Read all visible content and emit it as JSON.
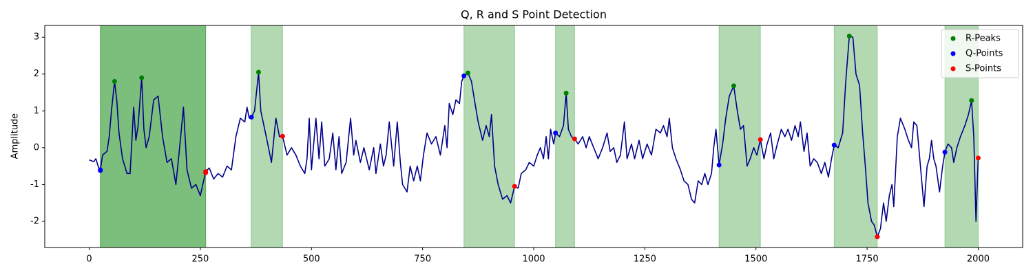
{
  "chart_data": {
    "type": "line",
    "title": "Q, R and S Point Detection",
    "ylabel": "Amplitude",
    "xlim": [
      -100,
      2100
    ],
    "ylim": [
      -2.71,
      3.32
    ],
    "xticks": [
      0,
      250,
      500,
      750,
      1000,
      1250,
      1500,
      1750,
      2000
    ],
    "yticks": [
      -2,
      -1,
      0,
      1,
      2,
      3
    ],
    "color": "#00008b",
    "x": [
      0,
      10,
      15,
      20,
      25,
      30,
      40,
      45,
      50,
      57,
      62,
      67,
      75,
      85,
      92,
      100,
      105,
      110,
      118,
      123,
      128,
      135,
      145,
      155,
      165,
      175,
      185,
      195,
      205,
      212,
      220,
      230,
      240,
      250,
      262,
      270,
      280,
      290,
      300,
      310,
      320,
      330,
      340,
      350,
      355,
      360,
      365,
      372,
      381,
      386,
      393,
      400,
      410,
      420,
      428,
      435,
      445,
      455,
      465,
      475,
      485,
      490,
      495,
      500,
      510,
      517,
      523,
      530,
      540,
      548,
      555,
      562,
      568,
      578,
      588,
      595,
      600,
      610,
      618,
      630,
      640,
      645,
      655,
      662,
      668,
      675,
      685,
      693,
      700,
      705,
      715,
      722,
      730,
      738,
      745,
      752,
      760,
      770,
      780,
      790,
      795,
      800,
      805,
      810,
      818,
      825,
      833,
      838,
      843,
      852,
      860,
      868,
      875,
      885,
      893,
      900,
      905,
      912,
      920,
      930,
      940,
      948,
      957,
      965,
      972,
      982,
      990,
      1000,
      1008,
      1015,
      1022,
      1028,
      1033,
      1038,
      1045,
      1049,
      1058,
      1067,
      1073,
      1078,
      1085,
      1092,
      1100,
      1110,
      1118,
      1125,
      1135,
      1145,
      1155,
      1165,
      1172,
      1180,
      1187,
      1195,
      1204,
      1210,
      1220,
      1227,
      1237,
      1245,
      1255,
      1265,
      1275,
      1285,
      1292,
      1300,
      1305,
      1312,
      1320,
      1330,
      1338,
      1347,
      1355,
      1362,
      1370,
      1378,
      1385,
      1392,
      1400,
      1405,
      1410,
      1417,
      1425,
      1432,
      1440,
      1450,
      1458,
      1465,
      1472,
      1480,
      1487,
      1495,
      1502,
      1510,
      1518,
      1525,
      1533,
      1540,
      1548,
      1557,
      1565,
      1572,
      1580,
      1588,
      1595,
      1600,
      1608,
      1615,
      1622,
      1630,
      1638,
      1647,
      1655,
      1663,
      1670,
      1676,
      1685,
      1695,
      1702,
      1710,
      1718,
      1725,
      1733,
      1740,
      1746,
      1752,
      1760,
      1766,
      1773,
      1780,
      1787,
      1793,
      1800,
      1806,
      1810,
      1818,
      1825,
      1835,
      1843,
      1850,
      1855,
      1862,
      1870,
      1878,
      1885,
      1890,
      1895,
      1900,
      1905,
      1913,
      1920,
      1925,
      1932,
      1940,
      1945,
      1952,
      1960,
      1970,
      1978,
      1985,
      1990,
      1995,
      2000
    ],
    "values": [
      -0.33,
      -0.38,
      -0.3,
      -0.5,
      -0.62,
      -0.2,
      -0.1,
      0.3,
      1.0,
      1.8,
      1.3,
      0.4,
      -0.3,
      -0.7,
      -0.7,
      1.1,
      0.2,
      0.6,
      1.9,
      0.5,
      0.0,
      0.3,
      1.3,
      1.4,
      0.3,
      -0.4,
      -0.3,
      -1.0,
      0.2,
      1.1,
      -0.6,
      -1.1,
      -1.0,
      -1.3,
      -0.65,
      -0.55,
      -0.85,
      -0.7,
      -0.8,
      -0.5,
      -0.6,
      0.3,
      0.8,
      0.7,
      1.1,
      0.8,
      0.83,
      1.0,
      2.05,
      1.0,
      0.6,
      0.2,
      -0.4,
      0.8,
      0.3,
      0.31,
      -0.2,
      0.0,
      -0.2,
      -0.5,
      -0.7,
      -0.3,
      0.8,
      -0.6,
      0.8,
      -0.3,
      0.7,
      -0.5,
      -0.3,
      0.4,
      -0.6,
      0.3,
      -0.7,
      -0.4,
      0.8,
      -0.2,
      0.2,
      -0.4,
      0.0,
      -0.6,
      0.0,
      -0.7,
      0.1,
      -0.5,
      -0.2,
      0.7,
      -0.5,
      0.7,
      -0.4,
      -1.0,
      -1.2,
      -0.5,
      -0.9,
      -0.5,
      -0.9,
      -0.2,
      0.4,
      0.1,
      0.3,
      -0.2,
      0.2,
      0.6,
      0.0,
      1.2,
      0.9,
      1.3,
      1.2,
      1.8,
      1.95,
      2.03,
      1.8,
      1.2,
      0.7,
      0.2,
      0.6,
      0.3,
      0.9,
      -0.5,
      -1.0,
      -1.4,
      -1.3,
      -1.5,
      -1.05,
      -1.1,
      -0.7,
      -0.6,
      -0.4,
      -0.5,
      -0.2,
      0.0,
      -0.3,
      0.3,
      -0.3,
      0.5,
      0.1,
      0.4,
      0.3,
      0.6,
      1.48,
      0.5,
      0.3,
      0.24,
      0.1,
      0.3,
      0.0,
      0.3,
      0.0,
      -0.3,
      0.0,
      0.4,
      -0.1,
      0.0,
      -0.4,
      -0.2,
      0.7,
      -0.3,
      0.1,
      -0.3,
      0.2,
      -0.3,
      0.1,
      -0.2,
      0.5,
      0.4,
      0.6,
      0.3,
      0.8,
      0.0,
      -0.3,
      -0.6,
      -0.9,
      -1.0,
      -1.4,
      -1.5,
      -0.9,
      -1.0,
      -0.7,
      -1.0,
      -0.7,
      0.0,
      0.5,
      -0.47,
      0.1,
      0.8,
      1.4,
      1.68,
      1.0,
      0.5,
      0.6,
      -0.5,
      -0.3,
      0.0,
      -0.2,
      0.22,
      -0.3,
      0.1,
      0.4,
      -0.3,
      0.1,
      0.5,
      0.3,
      0.5,
      0.2,
      0.6,
      0.3,
      0.7,
      -0.1,
      0.4,
      -0.5,
      -0.3,
      -0.4,
      -0.7,
      -0.4,
      -0.8,
      -0.3,
      0.07,
      0.0,
      0.4,
      1.8,
      3.03,
      3.0,
      2.0,
      1.7,
      0.4,
      -0.5,
      -1.5,
      -2.0,
      -2.1,
      -2.42,
      -2.2,
      -1.5,
      -2.0,
      -1.3,
      -1.0,
      -1.6,
      0.3,
      0.8,
      0.5,
      0.2,
      0.0,
      0.7,
      0.6,
      -0.5,
      -1.6,
      -0.5,
      -0.3,
      0.2,
      -0.3,
      -0.5,
      -1.2,
      -0.5,
      -0.12,
      0.1,
      0.0,
      -0.4,
      0.0,
      0.3,
      0.6,
      0.9,
      1.28,
      0.3,
      -2.0,
      -0.28
    ],
    "spans": [
      [
        25,
        262
      ],
      [
        25,
        262
      ],
      [
        364,
        435
      ],
      [
        843,
        957
      ],
      [
        1049,
        1092
      ],
      [
        1417,
        1510
      ],
      [
        1676,
        1773
      ],
      [
        1925,
        2000
      ]
    ],
    "span_color": "green",
    "legend": "upper right",
    "markers": [
      {
        "name": "R-Peaks",
        "color": "green",
        "x": [
          57,
          118,
          381,
          852,
          1073,
          1450,
          1710,
          1985
        ],
        "values": [
          1.8,
          1.9,
          2.05,
          2.03,
          1.48,
          1.68,
          3.03,
          1.28
        ]
      },
      {
        "name": "Q-Points",
        "color": "blue",
        "x": [
          25,
          25,
          365,
          843,
          1049,
          1417,
          1676,
          1925
        ],
        "values": [
          -0.62,
          -0.6,
          0.83,
          1.95,
          0.4,
          -0.47,
          0.07,
          -0.12
        ]
      },
      {
        "name": "S-Points",
        "color": "red",
        "x": [
          262,
          262,
          435,
          957,
          1092,
          1510,
          1773,
          2000
        ],
        "values": [
          -0.65,
          -0.68,
          0.31,
          -1.05,
          0.24,
          0.22,
          -2.42,
          -0.28
        ]
      }
    ]
  }
}
